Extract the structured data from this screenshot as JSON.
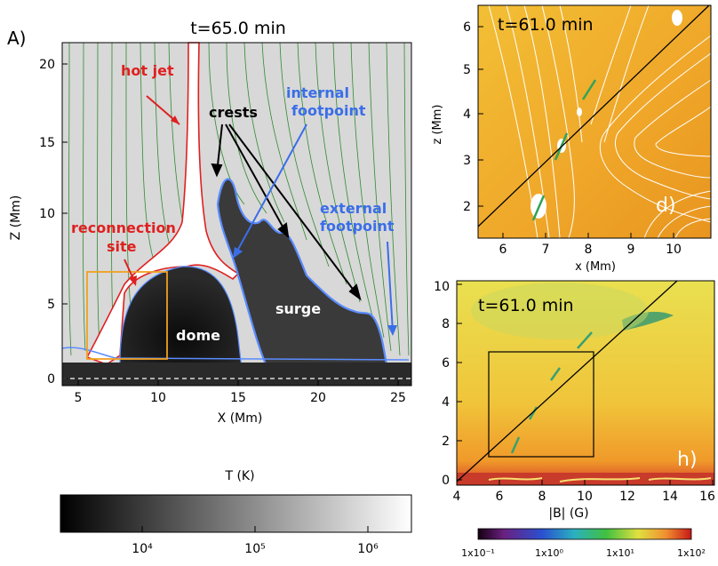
{
  "panel_a": {
    "panel_label": "A)",
    "time_label": "t=65.0 min",
    "xlabel": "X (Mm)",
    "ylabel": "Z (Mm)",
    "x_ticks": [
      "5",
      "10",
      "15",
      "20",
      "25"
    ],
    "y_ticks": [
      "0",
      "5",
      "10",
      "15",
      "20"
    ],
    "annotations": {
      "hot_jet": "hot jet",
      "crests": "crests",
      "internal_footpoint_1": "internal",
      "internal_footpoint_2": "footpoint",
      "external_footpoint_1": "external",
      "external_footpoint_2": "footpoint",
      "reconnection_1": "reconnection",
      "reconnection_2": "site",
      "dome": "dome",
      "surge": "surge"
    },
    "colorbar": {
      "label": "T (K)",
      "ticks": [
        "10⁴",
        "10⁵",
        "10⁶"
      ]
    }
  },
  "panel_d": {
    "time_label": "t=61.0 min",
    "corner_label": "d)",
    "xlabel": "x (Mm)",
    "ylabel": "z (Mm)",
    "x_ticks": [
      "6",
      "7",
      "8",
      "9",
      "10"
    ],
    "y_ticks": [
      "2",
      "3",
      "4",
      "5",
      "6"
    ]
  },
  "panel_h": {
    "time_label": "t=61.0 min",
    "corner_label": "h)",
    "xlabel": "|B| (G)",
    "x_ticks": [
      "4",
      "6",
      "8",
      "10",
      "12",
      "14",
      "16"
    ],
    "y_ticks": [
      "0",
      "2",
      "4",
      "6",
      "8",
      "10"
    ],
    "colorbar": {
      "ticks": [
        "1x10⁻¹",
        "1x10⁰",
        "1x10¹",
        "1x10²"
      ]
    }
  },
  "colors": {
    "jet_contour": "#e02020",
    "surge_contour": "#5a8cff",
    "field_lines_a": "#2f8a2f",
    "reconnection_box": "#f0a020",
    "field_lines_d": "#ffffff"
  },
  "chart_data": [
    {
      "type": "heatmap",
      "title": "t=65.0 min",
      "xlabel": "X (Mm)",
      "ylabel": "Z (Mm)",
      "xlim": [
        4,
        26
      ],
      "ylim": [
        -0.5,
        21
      ],
      "colorbar_label": "T (K)",
      "colorbar_range": [
        2000,
        2000000
      ],
      "colorbar_scale": "log"
    },
    {
      "type": "heatmap",
      "title": "t=61.0 min",
      "xlabel": "x (Mm)",
      "ylabel": "z (Mm)",
      "xlim": [
        5.5,
        10.5
      ],
      "ylim": [
        1.5,
        6.5
      ]
    },
    {
      "type": "heatmap",
      "title": "t=61.0 min",
      "xlabel": "|B| (G)",
      "xlim": [
        4,
        16
      ],
      "ylim": [
        -0.3,
        10
      ],
      "colorbar_range": [
        0.1,
        100
      ],
      "colorbar_scale": "log"
    }
  ]
}
